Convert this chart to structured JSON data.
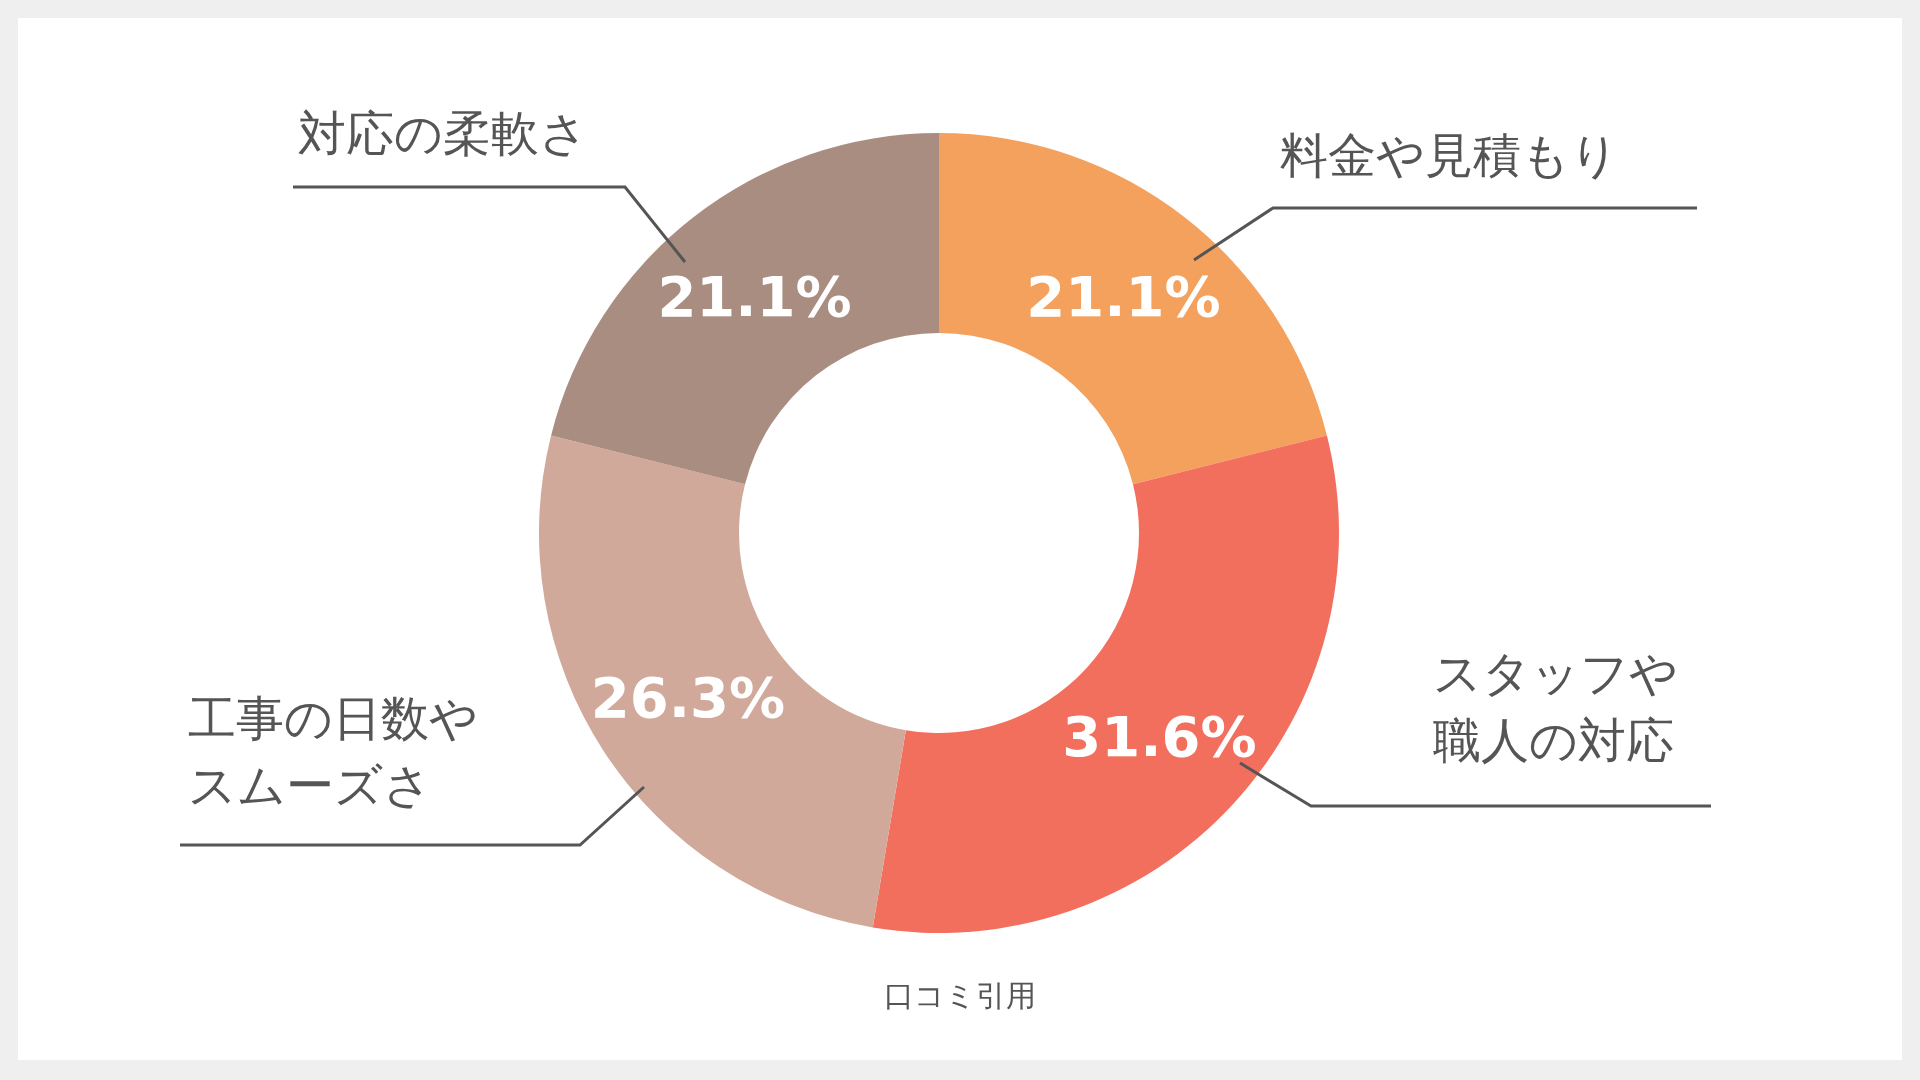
{
  "chart_data": {
    "type": "donut",
    "categories": [
      "料金や見積もり",
      "スタッフや職人の対応",
      "工事の日数やスムーズさ",
      "対応の柔軟さ"
    ],
    "values": [
      21.1,
      31.6,
      26.3,
      21.1
    ],
    "colors": [
      "#f4a15d",
      "#f26f5e",
      "#d0a99b",
      "#a98d80"
    ],
    "value_labels": [
      "21.1%",
      "31.6%",
      "26.3%",
      "21.1%"
    ],
    "annotations": [
      "口コミ引用"
    ]
  }
}
